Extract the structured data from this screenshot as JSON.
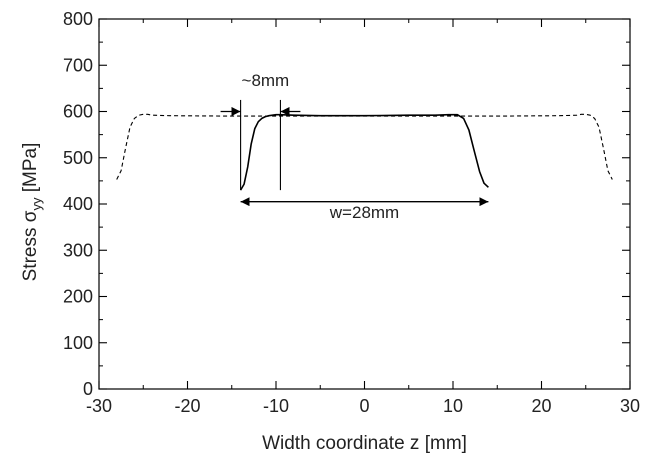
{
  "chart_data": {
    "type": "line",
    "title": "",
    "xlabel": "Width coordinate z [mm]",
    "ylabel": {
      "prefix": "Stress σ",
      "subscript": "yy",
      "suffix": " [MPa]"
    },
    "xlim": [
      -30,
      30
    ],
    "ylim": [
      0,
      800
    ],
    "x_ticks": [
      -30,
      -20,
      -10,
      0,
      10,
      20,
      30
    ],
    "y_ticks": [
      0,
      100,
      200,
      300,
      400,
      500,
      600,
      700,
      800
    ],
    "grid": false,
    "series": [
      {
        "style": "solid",
        "color": "#000000",
        "x": [
          -14.0,
          -13.6,
          -13.2,
          -12.8,
          -12.4,
          -12.0,
          -11.6,
          -11.2,
          -10.8,
          -10.4,
          -10.0,
          -9.5,
          -8.0,
          -5.0,
          0.0,
          5.0,
          8.0,
          9.5,
          10.5,
          11.2,
          11.8,
          12.4,
          13.0,
          13.5,
          14.0
        ],
        "y": [
          430,
          443,
          480,
          530,
          563,
          578,
          585,
          589,
          591,
          592,
          593,
          593,
          592,
          591,
          591,
          592,
          592,
          593,
          593,
          585,
          560,
          515,
          470,
          445,
          436
        ]
      },
      {
        "style": "dashed",
        "color": "#000000",
        "x": [
          -28.0,
          -27.5,
          -27.0,
          -26.5,
          -26.0,
          -25.5,
          -25.0,
          -24.5,
          -24.0,
          -22.0,
          -15.0,
          0.0,
          15.0,
          22.0,
          24.0,
          24.5,
          25.0,
          25.5,
          26.0,
          26.5,
          27.0,
          27.5,
          28.0
        ],
        "y": [
          453,
          472,
          520,
          566,
          585,
          592,
          594,
          594,
          592,
          591,
          590,
          590,
          590,
          591,
          592,
          594,
          594,
          592,
          585,
          566,
          520,
          472,
          453
        ]
      }
    ],
    "annotations": [
      {
        "label": "~8mm",
        "type": "dimension-inward-arrows",
        "x_from": -14.0,
        "x_to": -9.5,
        "y": 600,
        "label_at": {
          "x": -11.2,
          "y": 655
        },
        "ref_lines": [
          {
            "x": -14.0,
            "y_from": 430,
            "y_to": 625
          },
          {
            "x": -9.5,
            "y_from": 430,
            "y_to": 625
          }
        ]
      },
      {
        "label": "w=28mm",
        "type": "dimension-double-arrow",
        "x_from": -14.0,
        "x_to": 14.0,
        "y": 405,
        "label_at": {
          "x": 0.0,
          "y": 370
        }
      }
    ]
  }
}
